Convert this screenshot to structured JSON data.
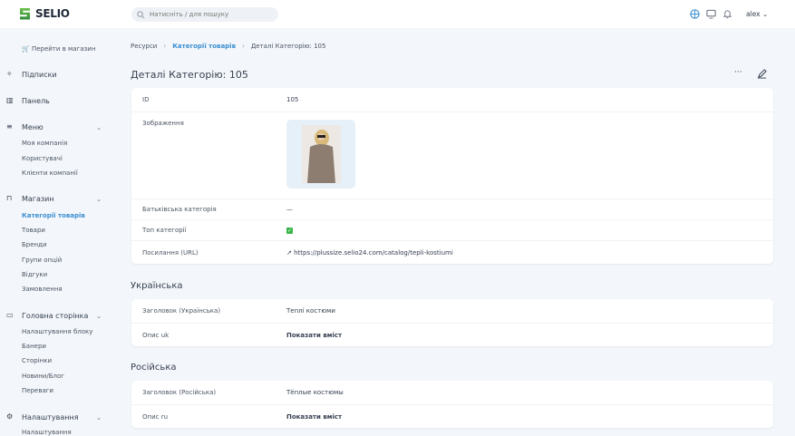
{
  "brand": {
    "name": "SELIO",
    "accent": "#3b8fd1"
  },
  "search": {
    "placeholder": "Натисніть / для пошуку"
  },
  "topbar": {
    "user": "alex"
  },
  "sidebar": {
    "shop_link": "🛒 Перейти в магазин",
    "subscriptions": "Підписки",
    "dashboard": "Панель",
    "menu": {
      "label": "Меню",
      "items": [
        "Моя компанія",
        "Користувачі",
        "Клієнти компанії"
      ]
    },
    "shop": {
      "label": "Магазин",
      "items": [
        "Категорії товарів",
        "Товари",
        "Бренди",
        "Групи опцій",
        "Відгуки",
        "Замовлення"
      ]
    },
    "home": {
      "label": "Головна сторінка",
      "items": [
        "Налаштування блоку",
        "Банери",
        "Сторінки",
        "Новини/Блог",
        "Переваги"
      ]
    },
    "settings": {
      "label": "Налаштування",
      "items": [
        "Налаштування"
      ]
    }
  },
  "breadcrumb": [
    "Ресурси",
    "Категорії товарів",
    "Деталі Категорію: 105"
  ],
  "page_title": "Деталі Категорію: 105",
  "details": {
    "id_label": "ID",
    "id": "105",
    "image_label": "Зображення",
    "parent_label": "Батьківська категорія",
    "parent": "—",
    "top_label": "Топ категорії",
    "top": true,
    "url_label": "Посилання (URL)",
    "url": "https://plussize.selio24.com/catalog/tepli-kostiumi"
  },
  "ukrainian": {
    "heading": "Українська",
    "title_label": "Заголовок (Українська)",
    "title": "Теплі костюми",
    "desc_label": "Опис uk",
    "show": "Показати вміст"
  },
  "russian": {
    "heading": "Російська",
    "title_label": "Заголовок (Російська)",
    "title": "Тёплые костюмы",
    "desc_label": "Опис ru",
    "show": "Показати вміст"
  }
}
